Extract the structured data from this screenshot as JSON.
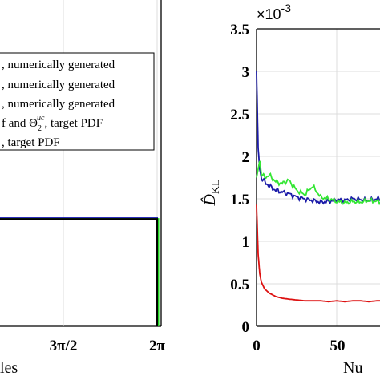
{
  "chart_data": [
    {
      "type": "line",
      "panel": "left",
      "xlabel": "les",
      "x_ticks": [
        "3π/2",
        "2π"
      ],
      "xlim": [
        0,
        6.2832
      ],
      "ylim": [
        0,
        0.25
      ],
      "legend": {
        "placement": "top-right",
        "entries": [
          {
            "label": ", numerically generated"
          },
          {
            "label": ", numerically generated"
          },
          {
            "label": ", numerically generated"
          },
          {
            "label": "f  and Θ",
            "sym_sup": "uc",
            "sym_sub": "2",
            "label_suffix": ", target PDF"
          },
          {
            "label": ", target PDF"
          }
        ]
      },
      "series": [
        {
          "color": "#1010b0",
          "x": [
            3.3,
            4.71,
            6.28,
            6.28
          ],
          "y": [
            0.159,
            0.159,
            0.159,
            0.0
          ]
        },
        {
          "color": "#22dd22",
          "x": [
            3.3,
            4.71,
            6.28,
            6.28
          ],
          "y": [
            0.159,
            0.159,
            0.159,
            0.0
          ]
        },
        {
          "color": "#000000",
          "x": [
            3.3,
            4.71,
            6.28,
            6.28
          ],
          "y": [
            0.159,
            0.159,
            0.159,
            0.0
          ]
        }
      ]
    },
    {
      "type": "line",
      "panel": "right",
      "ylabel": "D̂",
      "ylabel_sub": "KL",
      "xlabel": "Nu",
      "multiplier": "×10",
      "multiplier_exp": "-3",
      "y_ticks": [
        "0",
        "0.5",
        "1",
        "1.5",
        "2",
        "2.5",
        "3",
        "3.5"
      ],
      "x_ticks": [
        "0",
        "50"
      ],
      "xlim": [
        0,
        82
      ],
      "ylim": [
        0,
        3.5
      ],
      "grid": true,
      "series": [
        {
          "color": "#1a1aa8",
          "x": [
            0,
            1,
            2,
            3,
            5,
            8,
            12,
            16,
            20,
            25,
            30,
            35,
            40,
            45,
            50,
            55,
            60,
            65,
            70,
            75,
            80,
            82
          ],
          "y": [
            3.0,
            2.1,
            1.85,
            1.75,
            1.7,
            1.65,
            1.6,
            1.58,
            1.56,
            1.52,
            1.5,
            1.48,
            1.46,
            1.47,
            1.49,
            1.48,
            1.5,
            1.49,
            1.48,
            1.5,
            1.49,
            1.5
          ]
        },
        {
          "color": "#33e633",
          "x": [
            0,
            1,
            2,
            3,
            5,
            8,
            12,
            16,
            20,
            25,
            30,
            35,
            40,
            45,
            50,
            55,
            60,
            65,
            70,
            75,
            80,
            82
          ],
          "y": [
            1.75,
            1.85,
            1.95,
            1.8,
            1.75,
            1.78,
            1.7,
            1.68,
            1.72,
            1.6,
            1.55,
            1.65,
            1.52,
            1.5,
            1.47,
            1.45,
            1.47,
            1.46,
            1.48,
            1.47,
            1.46,
            1.47
          ]
        },
        {
          "color": "#dd1111",
          "x": [
            0,
            1,
            2,
            3,
            5,
            8,
            12,
            16,
            20,
            25,
            30,
            35,
            40,
            45,
            50,
            55,
            60,
            65,
            70,
            75,
            80,
            82
          ],
          "y": [
            1.43,
            0.85,
            0.62,
            0.52,
            0.44,
            0.39,
            0.35,
            0.33,
            0.32,
            0.31,
            0.3,
            0.3,
            0.3,
            0.29,
            0.3,
            0.29,
            0.3,
            0.3,
            0.29,
            0.3,
            0.3,
            0.3
          ]
        }
      ]
    }
  ]
}
